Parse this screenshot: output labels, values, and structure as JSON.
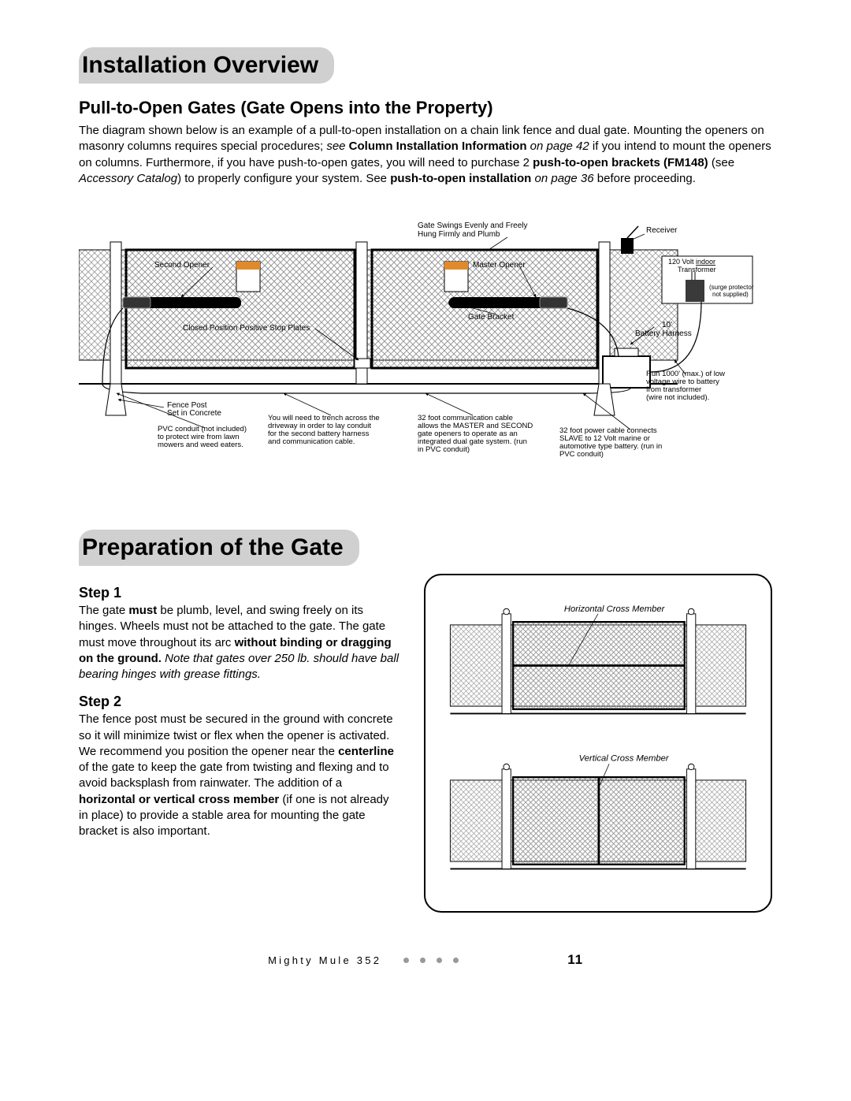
{
  "overview": {
    "heading": "Installation Overview",
    "subheading": "Pull-to-Open Gates (Gate Opens into the Property)",
    "para_parts": [
      {
        "t": "The diagram shown below is an example of a pull-to-open installation on a chain link fence and dual gate. Mounting the openers on masonry columns requires special procedures; "
      },
      {
        "t": "see ",
        "i": true
      },
      {
        "t": "Column Installation Information ",
        "b": true
      },
      {
        "t": "on page 42 ",
        "i": true
      },
      {
        "t": "if you intend to mount the openers on columns. Furthermore, if you have push-to-open gates, you will need to purchase 2 "
      },
      {
        "t": "push-to-open brackets (FM148) ",
        "b": true
      },
      {
        "t": "(see "
      },
      {
        "t": "Accessory Catalog",
        "i": true
      },
      {
        "t": ") to properly configure your system. See "
      },
      {
        "t": "push-to-open installation ",
        "b": true
      },
      {
        "t": "on page 36 ",
        "i": true
      },
      {
        "t": "before proceeding."
      }
    ]
  },
  "diagram": {
    "labels": {
      "swings": "Gate Swings Evenly and Freely\nHung Firmly and Plumb",
      "receiver": "Receiver",
      "transformer_top": "120 Volt indoor",
      "transformer_bot": "Transformer",
      "surge": "(surge protector\nnot supplied)",
      "second_opener": "Second Opener",
      "master_opener": "Master Opener",
      "gate_bracket": "Gate Bracket",
      "stop_plates": "Closed Position Positive Stop Plates",
      "battery_harness": "10'\nBattery Harness",
      "run1000": "Run 1000' (max.) of low\nvoltage wire to battery\nfrom transformer\n(wire not included).",
      "fence_post": "Fence Post\nSet in Concrete",
      "pvc": "PVC conduit (not included)\nto protect wire from lawn\nmowers and weed eaters.",
      "trench": "You will need to trench across the\ndriveway in order to lay conduit\nfor the second battery harness\nand communication cable.",
      "comm32": "32 foot communication cable\nallows the MASTER and SECOND\ngate openers to operate as an\nintegrated dual gate system. (run\nin PVC conduit)",
      "power32": "32 foot power cable connects\nSLAVE to 12 Volt marine or\nautomotive type battery. (run in\nPVC conduit)"
    }
  },
  "prep": {
    "heading": "Preparation of the Gate",
    "step1_h": "Step 1",
    "step1_parts": [
      {
        "t": "The gate "
      },
      {
        "t": "must",
        "b": true
      },
      {
        "t": " be plumb, level, and swing freely on its hinges. Wheels must not be attached to the gate. The gate must move throughout its arc "
      },
      {
        "t": "without binding or dragging on the ground. ",
        "b": true
      },
      {
        "t": "Note that gates over 250 lb. should have ball bearing hinges with grease fittings.",
        "i": true
      }
    ],
    "step2_h": "Step 2",
    "step2_parts": [
      {
        "t": "The fence post must be secured in the ground with concrete so it will minimize twist or flex when the opener is activated.  We recommend you position the opener near the "
      },
      {
        "t": "centerline",
        "b": true
      },
      {
        "t": " of the gate to keep the gate from twisting and flexing and to avoid backsplash from rainwater. The addition of a "
      },
      {
        "t": "horizontal or vertical cross member",
        "b": true
      },
      {
        "t": " (if one is not already in place) to provide a stable area for mounting the gate bracket is also important."
      }
    ],
    "illus_labels": {
      "horiz": "Horizontal Cross Member",
      "vert": "Vertical Cross Member"
    }
  },
  "footer": {
    "product": "Mighty Mule 352",
    "page": "11"
  },
  "colors": {
    "bg": "#ffffff",
    "pill": "#d0d0d0",
    "line": "#000000",
    "hatch": "#9a9a9a",
    "dot": "#999999",
    "warn": "#e08a2c",
    "transformer_fill": "#3a3a3a"
  }
}
